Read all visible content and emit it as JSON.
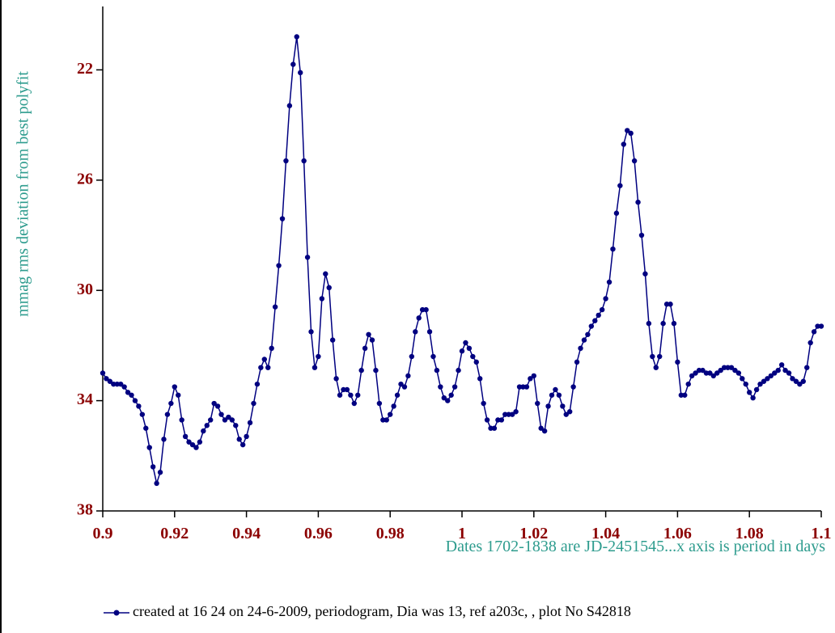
{
  "chart_data": {
    "type": "line",
    "x_label": "Dates  1702-1838 are JD-2451545...x axis is period in days",
    "y_label": "mmag rms deviation from best polyfit",
    "x": [
      0.9,
      0.901,
      0.902,
      0.903,
      0.904,
      0.905,
      0.906,
      0.907,
      0.908,
      0.909,
      0.91,
      0.911,
      0.912,
      0.913,
      0.914,
      0.915,
      0.916,
      0.917,
      0.918,
      0.919,
      0.92,
      0.921,
      0.922,
      0.923,
      0.924,
      0.925,
      0.926,
      0.927,
      0.928,
      0.929,
      0.93,
      0.931,
      0.932,
      0.933,
      0.934,
      0.935,
      0.936,
      0.937,
      0.938,
      0.939,
      0.94,
      0.941,
      0.942,
      0.943,
      0.944,
      0.945,
      0.946,
      0.947,
      0.948,
      0.949,
      0.95,
      0.951,
      0.952,
      0.953,
      0.954,
      0.955,
      0.956,
      0.957,
      0.958,
      0.959,
      0.96,
      0.961,
      0.962,
      0.963,
      0.964,
      0.965,
      0.966,
      0.967,
      0.968,
      0.969,
      0.97,
      0.971,
      0.972,
      0.973,
      0.974,
      0.975,
      0.976,
      0.977,
      0.978,
      0.979,
      0.98,
      0.981,
      0.982,
      0.983,
      0.984,
      0.985,
      0.986,
      0.987,
      0.988,
      0.989,
      0.99,
      0.991,
      0.992,
      0.993,
      0.994,
      0.995,
      0.996,
      0.997,
      0.998,
      0.999,
      1.0,
      1.001,
      1.002,
      1.003,
      1.004,
      1.005,
      1.006,
      1.007,
      1.008,
      1.009,
      1.01,
      1.011,
      1.012,
      1.013,
      1.014,
      1.015,
      1.016,
      1.017,
      1.018,
      1.019,
      1.02,
      1.021,
      1.022,
      1.023,
      1.024,
      1.025,
      1.026,
      1.027,
      1.028,
      1.029,
      1.03,
      1.031,
      1.032,
      1.033,
      1.034,
      1.035,
      1.036,
      1.037,
      1.038,
      1.039,
      1.04,
      1.041,
      1.042,
      1.043,
      1.044,
      1.045,
      1.046,
      1.047,
      1.048,
      1.049,
      1.05,
      1.051,
      1.052,
      1.053,
      1.054,
      1.055,
      1.056,
      1.057,
      1.058,
      1.059,
      1.06,
      1.061,
      1.062,
      1.063,
      1.064,
      1.065,
      1.066,
      1.067,
      1.068,
      1.069,
      1.07,
      1.071,
      1.072,
      1.073,
      1.074,
      1.075,
      1.076,
      1.077,
      1.078,
      1.079,
      1.08,
      1.081,
      1.082,
      1.083,
      1.084,
      1.085,
      1.086,
      1.087,
      1.088,
      1.089,
      1.09,
      1.091,
      1.092,
      1.093,
      1.094,
      1.095,
      1.096,
      1.097,
      1.098,
      1.099,
      1.1
    ],
    "series": [
      {
        "name": "created at 16 24 on 24-6-2009,  periodogram, Dia was 13, ref a203c, ,  plot No S42818",
        "color": "#000080",
        "values": [
          33.0,
          33.2,
          33.3,
          33.4,
          33.4,
          33.4,
          33.5,
          33.7,
          33.8,
          34.0,
          34.2,
          34.5,
          35.0,
          35.7,
          36.4,
          37.0,
          36.6,
          35.4,
          34.5,
          34.1,
          33.5,
          33.8,
          34.7,
          35.3,
          35.5,
          35.6,
          35.7,
          35.5,
          35.1,
          34.9,
          34.7,
          34.1,
          34.2,
          34.5,
          34.7,
          34.6,
          34.7,
          34.9,
          35.4,
          35.6,
          35.3,
          34.8,
          34.1,
          33.4,
          32.8,
          32.5,
          32.8,
          32.1,
          30.6,
          29.1,
          27.4,
          25.3,
          23.3,
          21.8,
          20.8,
          22.1,
          25.3,
          28.8,
          31.5,
          32.8,
          32.4,
          30.3,
          29.4,
          29.9,
          31.8,
          33.2,
          33.8,
          33.6,
          33.6,
          33.8,
          34.1,
          33.8,
          32.9,
          32.1,
          31.6,
          31.8,
          32.9,
          34.1,
          34.7,
          34.7,
          34.5,
          34.2,
          33.8,
          33.4,
          33.5,
          33.1,
          32.4,
          31.5,
          31.0,
          30.7,
          30.7,
          31.5,
          32.4,
          32.9,
          33.5,
          33.9,
          34.0,
          33.8,
          33.5,
          32.9,
          32.2,
          31.9,
          32.1,
          32.4,
          32.6,
          33.2,
          34.1,
          34.7,
          35.0,
          35.0,
          34.7,
          34.7,
          34.5,
          34.5,
          34.5,
          34.4,
          33.5,
          33.5,
          33.5,
          33.2,
          33.1,
          34.1,
          35.0,
          35.1,
          34.2,
          33.8,
          33.6,
          33.8,
          34.2,
          34.5,
          34.4,
          33.5,
          32.6,
          32.1,
          31.8,
          31.6,
          31.3,
          31.1,
          30.9,
          30.7,
          30.3,
          29.7,
          28.5,
          27.2,
          26.2,
          24.7,
          24.2,
          24.3,
          25.3,
          26.8,
          28.0,
          29.4,
          31.2,
          32.4,
          32.8,
          32.4,
          31.2,
          30.5,
          30.5,
          31.2,
          32.6,
          33.8,
          33.8,
          33.4,
          33.1,
          33.0,
          32.9,
          32.9,
          33.0,
          33.0,
          33.1,
          33.0,
          32.9,
          32.8,
          32.8,
          32.8,
          32.9,
          33.0,
          33.2,
          33.4,
          33.7,
          33.9,
          33.6,
          33.4,
          33.3,
          33.2,
          33.1,
          33.0,
          32.9,
          32.7,
          32.9,
          33.0,
          33.2,
          33.3,
          33.4,
          33.3,
          32.8,
          31.9,
          31.5,
          31.3,
          31.3
        ]
      }
    ],
    "xlim": [
      0.9,
      1.1
    ],
    "xticks": [
      0.9,
      0.92,
      0.94,
      0.96,
      0.98,
      1,
      1.02,
      1.04,
      1.06,
      1.08,
      1.1
    ],
    "ylim": [
      19.7,
      38
    ],
    "y_inverted": true,
    "yticks": [
      22,
      26,
      30,
      34,
      38
    ],
    "markers": true
  }
}
